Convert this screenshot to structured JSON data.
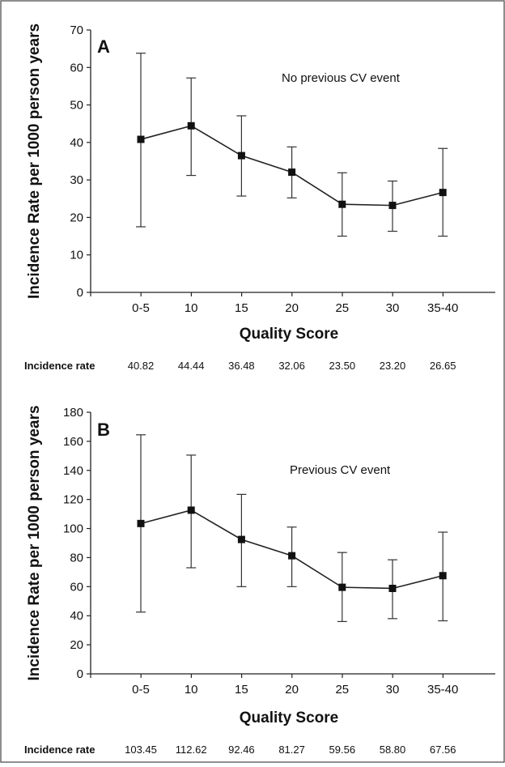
{
  "chart_data": [
    {
      "type": "line",
      "panel_letter": "A",
      "annotation": "No previous CV event",
      "xlabel": "Quality Score",
      "ylabel": "Incidence Rate per 1000 person years",
      "categories": [
        "0-5",
        "10",
        "15",
        "20",
        "25",
        "30",
        "35-40"
      ],
      "ylim": [
        0,
        70
      ],
      "yticks": [
        0,
        10,
        20,
        30,
        40,
        50,
        60,
        70
      ],
      "series": [
        {
          "values": [
            40.82,
            44.44,
            36.48,
            32.06,
            23.5,
            23.2,
            26.65
          ],
          "lower": [
            17.5,
            31.2,
            25.7,
            25.2,
            15.0,
            16.3,
            15.0
          ],
          "upper": [
            63.8,
            57.2,
            47.1,
            38.8,
            31.9,
            29.7,
            38.4
          ]
        }
      ],
      "incidence_label": "Incidence rate",
      "incidence_values": [
        "40.82",
        "44.44",
        "36.48",
        "32.06",
        "23.50",
        "23.20",
        "26.65"
      ]
    },
    {
      "type": "line",
      "panel_letter": "B",
      "annotation": "Previous CV event",
      "xlabel": "Quality Score",
      "ylabel": "Incidence Rate per 1000 person years",
      "categories": [
        "0-5",
        "10",
        "15",
        "20",
        "25",
        "30",
        "35-40"
      ],
      "ylim": [
        0,
        180
      ],
      "yticks": [
        0,
        20,
        40,
        60,
        80,
        100,
        120,
        140,
        160,
        180
      ],
      "series": [
        {
          "values": [
            103.45,
            112.62,
            92.46,
            81.27,
            59.56,
            58.8,
            67.56
          ],
          "lower": [
            42.5,
            73.0,
            60.0,
            60.0,
            36.0,
            38.0,
            36.5
          ],
          "upper": [
            164.5,
            150.5,
            123.5,
            101.0,
            83.5,
            78.5,
            97.5
          ]
        }
      ],
      "incidence_label": "Incidence rate",
      "incidence_values": [
        "103.45",
        "112.62",
        "92.46",
        "81.27",
        "59.56",
        "58.80",
        "67.56"
      ]
    }
  ]
}
